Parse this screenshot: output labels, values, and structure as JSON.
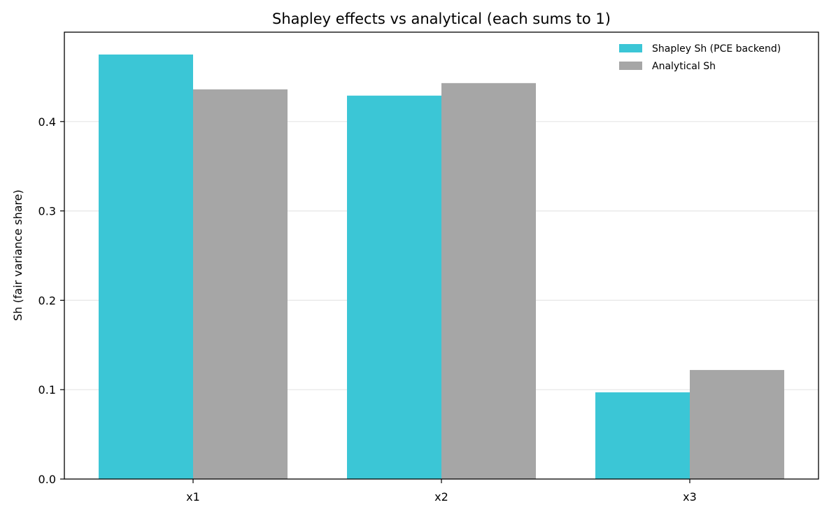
{
  "chart_data": {
    "type": "bar",
    "title": "Shapley effects vs analytical (each sums to 1)",
    "xlabel": "",
    "ylabel": "Sh (fair variance share)",
    "categories": [
      "x1",
      "x2",
      "x3"
    ],
    "series": [
      {
        "name": "Shapley Sh (PCE backend)",
        "color": "#3bc6d6",
        "values": [
          0.475,
          0.429,
          0.097
        ]
      },
      {
        "name": "Analytical Sh",
        "color": "#a6a6a6",
        "values": [
          0.436,
          0.443,
          0.122
        ]
      }
    ],
    "ylim": [
      0,
      0.5
    ],
    "yticks": [
      0.0,
      0.1,
      0.2,
      0.3,
      0.4
    ],
    "ytick_labels": [
      "0.0",
      "0.1",
      "0.2",
      "0.3",
      "0.4"
    ],
    "grid": "horizontal",
    "legend_position": "top-right"
  }
}
